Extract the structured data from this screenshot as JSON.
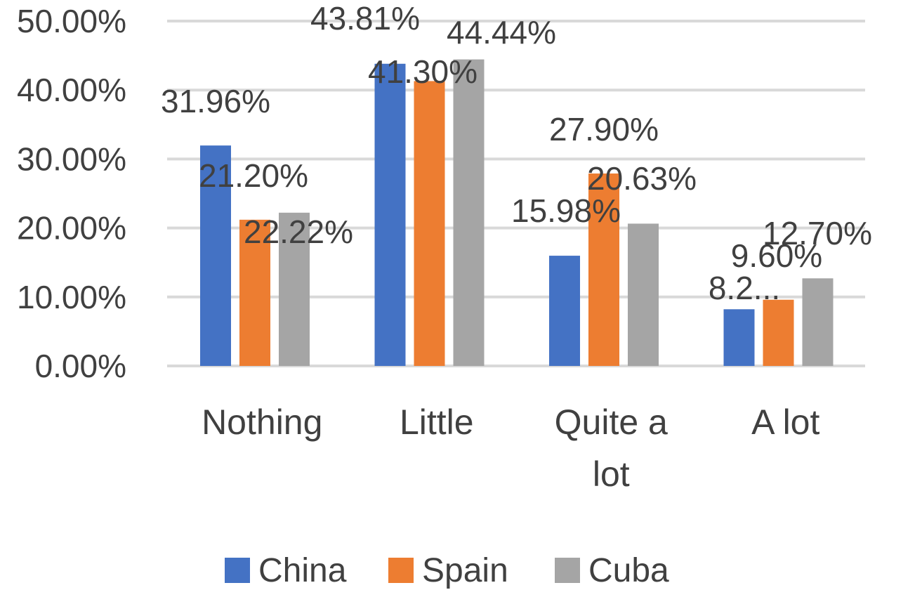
{
  "chart_data": {
    "type": "bar",
    "categories": [
      "Nothing",
      "Little",
      "Quite a lot",
      "A lot"
    ],
    "category_lines": [
      [
        "Nothing"
      ],
      [
        "Little"
      ],
      [
        "Quite a",
        "lot"
      ],
      [
        "A lot"
      ]
    ],
    "series": [
      {
        "name": "China",
        "color": "#4472C4",
        "values": [
          31.96,
          43.81,
          15.98,
          8.22
        ],
        "labels": [
          "31.96%",
          "43.81%",
          "15.98%",
          "8.2..."
        ]
      },
      {
        "name": "Spain",
        "color": "#ED7D31",
        "values": [
          21.2,
          41.3,
          27.9,
          9.6
        ],
        "labels": [
          "21.20%",
          "41.30%",
          "27.90%",
          "9.60%"
        ]
      },
      {
        "name": "Cuba",
        "color": "#A5A5A5",
        "values": [
          22.22,
          44.44,
          20.63,
          12.7
        ],
        "labels": [
          "22.22%",
          "44.44%",
          "20.63%",
          "12.70%"
        ]
      }
    ],
    "yticks": [
      "0.00%",
      "10.00%",
      "20.00%",
      "30.00%",
      "40.00%",
      "50.00%"
    ],
    "ylim": [
      0,
      50
    ],
    "grid": true,
    "legend_position": "bottom",
    "title": "",
    "xlabel": "",
    "ylabel": ""
  }
}
